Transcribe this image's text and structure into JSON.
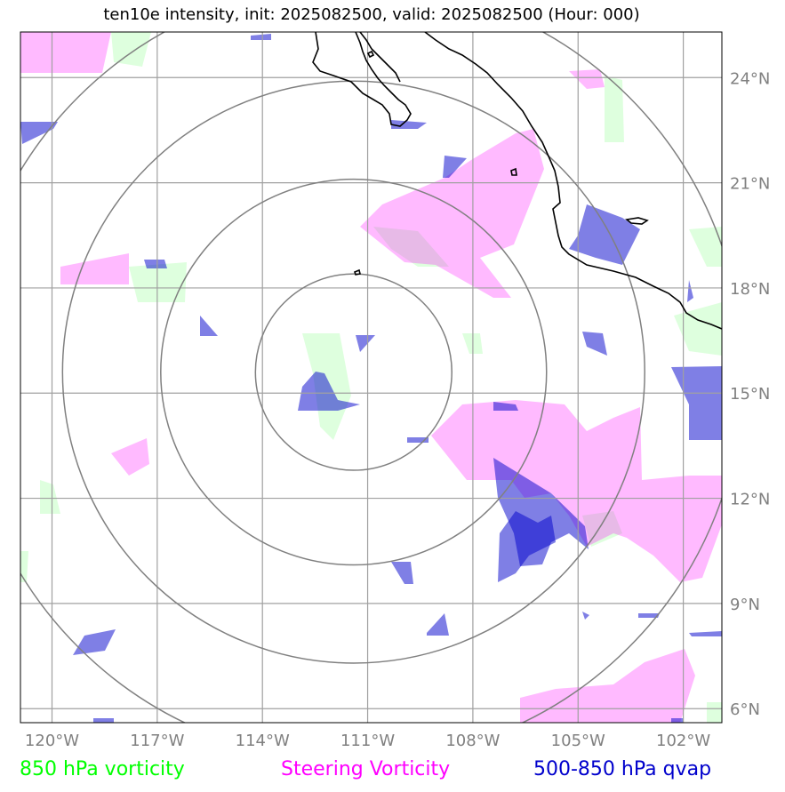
{
  "title": "ten10e intensity, init: 2025082500, valid: 2025082500 (Hour: 000)",
  "legend": {
    "vorticity": "850 hPa vorticity",
    "steering": "Steering Vorticity",
    "qvap": "500-850 hPa qvap"
  },
  "colors": {
    "vorticity": "#00ff00",
    "steering": "#ff00ff",
    "qvap": "#0000cc",
    "grid": "#a0a0a0",
    "rings": "#808080",
    "coast": "#000000",
    "tick": "#808080"
  },
  "map": {
    "lon_range": [
      -120.9,
      -100.9
    ],
    "lat_range": [
      5.6,
      25.3
    ],
    "lon_ticks": [
      {
        "value": -120,
        "label": "120°W"
      },
      {
        "value": -117,
        "label": "117°W"
      },
      {
        "value": -114,
        "label": "114°W"
      },
      {
        "value": -111,
        "label": "111°W"
      },
      {
        "value": -108,
        "label": "108°W"
      },
      {
        "value": -105,
        "label": "105°W"
      },
      {
        "value": -102,
        "label": "102°W"
      }
    ],
    "lat_ticks": [
      {
        "value": 24,
        "label": "24°N"
      },
      {
        "value": 21,
        "label": "21°N"
      },
      {
        "value": 18,
        "label": "18°N"
      },
      {
        "value": 15,
        "label": "15°N"
      },
      {
        "value": 12,
        "label": "12°N"
      },
      {
        "value": 9,
        "label": "9°N"
      },
      {
        "value": 6,
        "label": "6°N"
      }
    ],
    "storm_center": {
      "lon": -111.4,
      "lat": 15.6
    },
    "ring_radii_deg": [
      2.8,
      5.5,
      8.3,
      11.1
    ]
  }
}
